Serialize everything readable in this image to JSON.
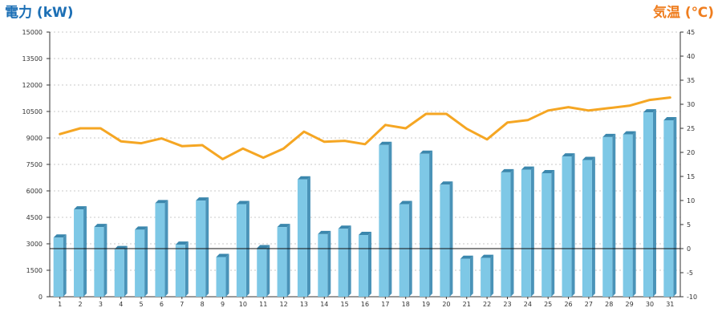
{
  "chart_data": {
    "type": "bar",
    "title": "",
    "left_axis": {
      "label": "電力 (kW)",
      "min": 0,
      "max": 15000,
      "ticks": [
        0,
        1500,
        3000,
        4500,
        6000,
        7500,
        9000,
        10500,
        12000,
        13500,
        15000
      ]
    },
    "right_axis": {
      "label": "気温 (℃)",
      "min": -10,
      "max": 45,
      "ticks": [
        -10,
        -5,
        0,
        5,
        10,
        15,
        20,
        25,
        30,
        35,
        40,
        45
      ]
    },
    "categories": [
      "1",
      "2",
      "3",
      "4",
      "5",
      "6",
      "7",
      "8",
      "9",
      "10",
      "11",
      "12",
      "13",
      "14",
      "15",
      "16",
      "17",
      "18",
      "19",
      "20",
      "21",
      "22",
      "23",
      "24",
      "25",
      "26",
      "27",
      "28",
      "29",
      "30",
      "31"
    ],
    "series": [
      {
        "name": "電力",
        "type": "bar",
        "axis": "left",
        "color": "#7ec8e6",
        "values": [
          3350,
          4950,
          3950,
          2700,
          3800,
          5300,
          2950,
          5450,
          2250,
          5250,
          2750,
          3950,
          6650,
          3550,
          3850,
          3500,
          8600,
          5250,
          8100,
          6350,
          2150,
          2200,
          7050,
          7200,
          7000,
          7950,
          7750,
          9050,
          9200,
          10450,
          10000
        ]
      },
      {
        "name": "気温",
        "type": "line",
        "axis": "right",
        "color": "#f5a623",
        "values": [
          23.8,
          25.0,
          25.0,
          22.3,
          21.9,
          22.9,
          21.3,
          21.5,
          18.6,
          20.8,
          18.9,
          20.8,
          24.3,
          22.2,
          22.4,
          21.7,
          25.7,
          25.0,
          28.0,
          28.0,
          24.9,
          22.7,
          26.2,
          26.7,
          28.7,
          29.4,
          28.7,
          29.2,
          29.7,
          30.9,
          31.4
        ]
      }
    ],
    "baseline_right": 0,
    "grid": true,
    "legend": "none"
  }
}
